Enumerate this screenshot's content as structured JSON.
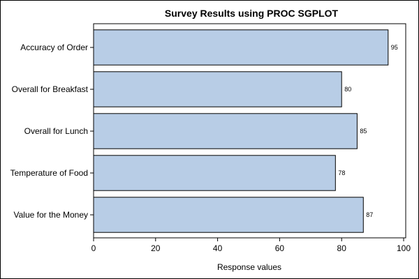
{
  "chart_data": {
    "type": "bar",
    "orientation": "horizontal",
    "title": "Survey Results using PROC SGPLOT",
    "xlabel": "Response values",
    "ylabel": "",
    "categories": [
      "Accuracy of Order",
      "Overall for Breakfast",
      "Overall for Lunch",
      "Temperature of Food",
      "Value for the Money"
    ],
    "values": [
      95,
      80,
      85,
      78,
      87
    ],
    "data_labels": [
      "95",
      "80",
      "85",
      "78",
      "87"
    ],
    "xlim": [
      0,
      100
    ],
    "xticks": [
      0,
      20,
      40,
      60,
      80,
      100
    ],
    "xtick_labels": [
      "0",
      "20",
      "40",
      "60",
      "80",
      "100"
    ],
    "grid": false,
    "legend": "none",
    "colors": {
      "bar_fill": "#b8cde6",
      "bar_stroke": "#000000",
      "axis": "#000000",
      "background": "#ffffff"
    }
  }
}
